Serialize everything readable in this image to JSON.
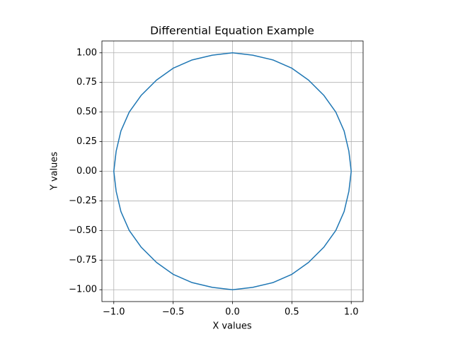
{
  "chart_data": {
    "type": "line",
    "title": "Differential Equation Example",
    "xlabel": "X values",
    "ylabel": "Y values",
    "x": [
      1,
      0.98,
      0.94,
      0.87,
      0.77,
      0.64,
      0.5,
      0.34,
      0.17,
      0,
      -0.17,
      -0.34,
      -0.5,
      -0.64,
      -0.77,
      -0.87,
      -0.94,
      -0.98,
      -1,
      -0.98,
      -0.94,
      -0.87,
      -0.77,
      -0.64,
      -0.5,
      -0.34,
      -0.17,
      0,
      0.17,
      0.34,
      0.5,
      0.64,
      0.77,
      0.87,
      0.94,
      0.98,
      1
    ],
    "series": [
      {
        "color": "#1f77b4",
        "values": [
          0,
          0.17,
          0.34,
          0.5,
          0.64,
          0.77,
          0.87,
          0.94,
          0.98,
          1,
          0.98,
          0.94,
          0.87,
          0.77,
          0.64,
          0.5,
          0.34,
          0.17,
          0,
          -0.17,
          -0.34,
          -0.5,
          -0.64,
          -0.77,
          -0.87,
          -0.94,
          -0.98,
          -1,
          -0.98,
          -0.94,
          -0.87,
          -0.77,
          -0.64,
          -0.5,
          -0.34,
          -0.17,
          0
        ]
      }
    ],
    "xlim": [
      -1.1,
      1.1
    ],
    "ylim": [
      -1.1,
      1.1
    ],
    "xticks": [
      {
        "value": -1,
        "label": "−1.0"
      },
      {
        "value": -0.5,
        "label": "−0.5"
      },
      {
        "value": 0,
        "label": "0.0"
      },
      0.5,
      {
        "value": 1,
        "label": "1.0"
      }
    ],
    "yticks": [
      {
        "value": -1,
        "label": "−1.00"
      },
      {
        "value": -0.75,
        "label": "−0.75"
      },
      {
        "value": -0.5,
        "label": "−0.50"
      },
      {
        "value": -0.25,
        "label": "−0.25"
      },
      {
        "value": 0,
        "label": "0.00"
      },
      0.25,
      {
        "value": 0.5,
        "label": "0.50"
      },
      0.75,
      {
        "value": 1,
        "label": "1.00"
      }
    ],
    "grid": true
  }
}
